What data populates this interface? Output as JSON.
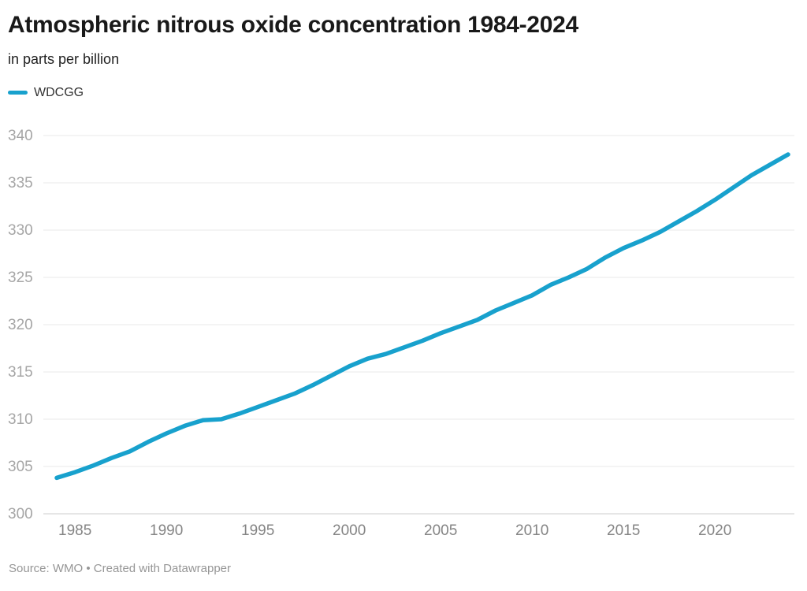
{
  "chart_data": {
    "type": "line",
    "title": "Atmospheric nitrous oxide concentration 1984-2024",
    "subtitle": "in parts per billion",
    "unit": "parts per billion",
    "x": [
      1984,
      1985,
      1986,
      1987,
      1988,
      1989,
      1990,
      1991,
      1992,
      1993,
      1994,
      1995,
      1996,
      1997,
      1998,
      1999,
      2000,
      2001,
      2002,
      2003,
      2004,
      2005,
      2006,
      2007,
      2008,
      2009,
      2010,
      2011,
      2012,
      2013,
      2014,
      2015,
      2016,
      2017,
      2018,
      2019,
      2020,
      2021,
      2022,
      2023,
      2024
    ],
    "series": [
      {
        "name": "WDCGG",
        "color": "#18a1cd",
        "values": [
          303.8,
          304.4,
          305.1,
          305.9,
          306.6,
          307.6,
          308.5,
          309.3,
          309.9,
          310.0,
          310.6,
          311.3,
          312.0,
          312.7,
          313.6,
          314.6,
          315.6,
          316.4,
          316.9,
          317.6,
          318.3,
          319.1,
          319.8,
          320.5,
          321.5,
          322.3,
          323.1,
          324.2,
          325.0,
          325.9,
          327.1,
          328.1,
          328.9,
          329.8,
          330.9,
          332.0,
          333.2,
          334.5,
          335.8,
          336.9,
          338.0
        ]
      }
    ],
    "xlabel": "",
    "ylabel": "",
    "ylim": [
      300,
      340
    ],
    "xlim": [
      1984,
      2024
    ],
    "yticks": [
      300,
      305,
      310,
      315,
      320,
      325,
      330,
      335,
      340
    ],
    "xticks": [
      1985,
      1990,
      1995,
      2000,
      2005,
      2010,
      2015,
      2020
    ],
    "grid": "horizontal",
    "legend_position": "top-left"
  },
  "footer": {
    "source_text": "Source: WMO • Created with Datawrapper"
  },
  "colors": {
    "accent": "#18a1cd",
    "gridline": "#e8e8e8",
    "baseline": "#cccccc",
    "y_tick_label": "#a6a6a6",
    "x_tick_label": "#858585",
    "title": "#191919",
    "footer_text": "#969696"
  }
}
